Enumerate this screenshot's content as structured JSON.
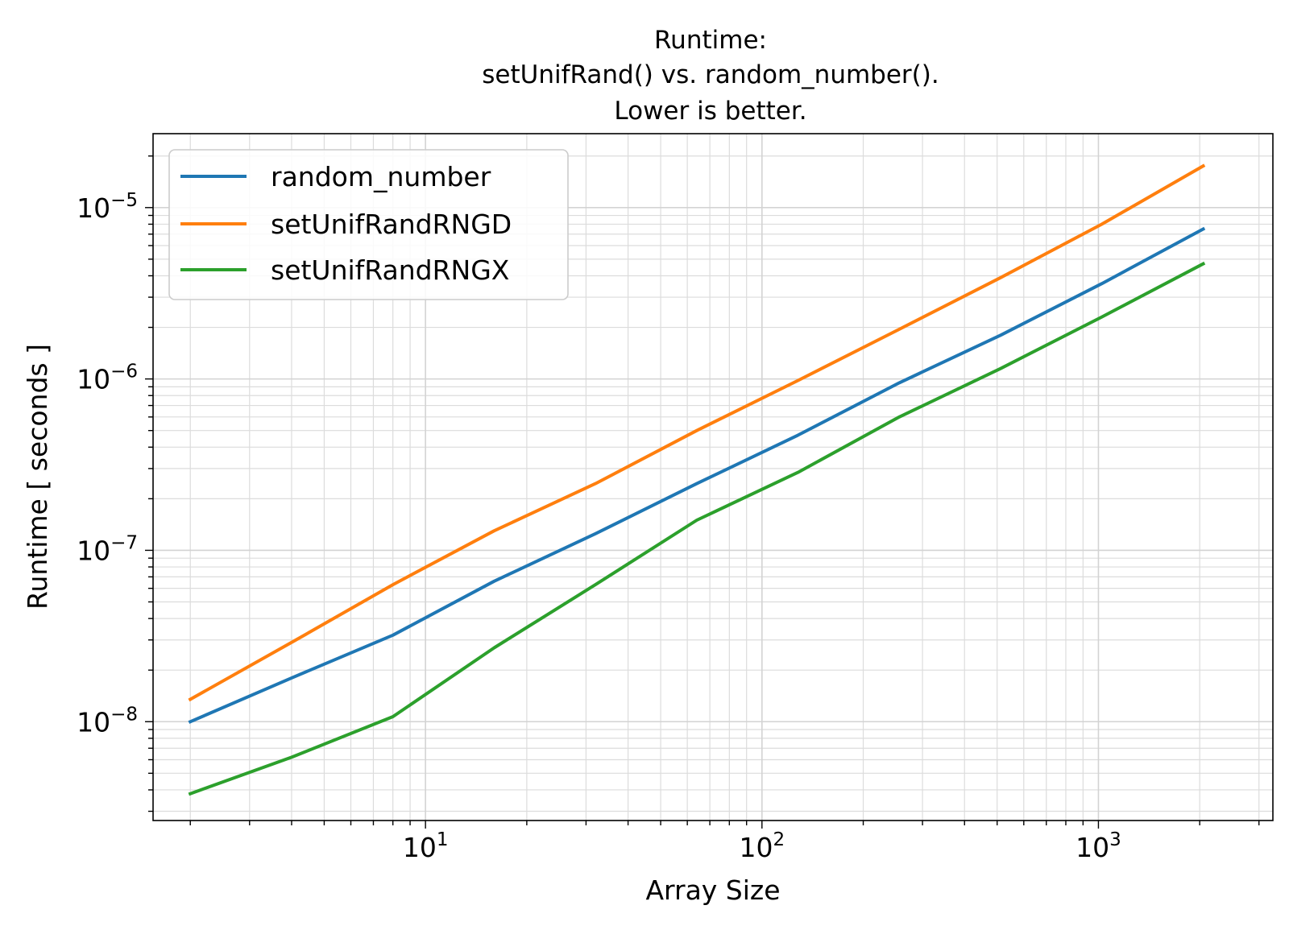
{
  "chart_data": {
    "type": "line",
    "title_lines": [
      "Runtime:",
      "setUnifRand() vs. random_number().",
      "Lower is better."
    ],
    "xlabel": "Array Size",
    "ylabel": "Runtime [ seconds ]",
    "xscale": "log",
    "yscale": "log",
    "xlim": [
      1.55,
      3300
    ],
    "ylim": [
      2.65e-09,
      2.7e-05
    ],
    "x_ticks": [
      {
        "value": 10,
        "base": "10",
        "exp": "1"
      },
      {
        "value": 100,
        "base": "10",
        "exp": "2"
      },
      {
        "value": 1000,
        "base": "10",
        "exp": "3"
      }
    ],
    "y_ticks": [
      {
        "value": 1e-08,
        "base": "10",
        "exp": "−8"
      },
      {
        "value": 1e-07,
        "base": "10",
        "exp": "−7"
      },
      {
        "value": 1e-06,
        "base": "10",
        "exp": "−6"
      },
      {
        "value": 1e-05,
        "base": "10",
        "exp": "−5"
      }
    ],
    "grid": "major and minor",
    "legend_position": "top-left",
    "x": [
      2,
      4,
      8,
      16,
      32,
      64,
      128,
      256,
      512,
      1024,
      2048
    ],
    "series": [
      {
        "name": "random_number",
        "color": "#1f77b4",
        "values": [
          1e-08,
          1.8e-08,
          3.2e-08,
          6.6e-08,
          1.25e-07,
          2.45e-07,
          4.7e-07,
          9.5e-07,
          1.8e-06,
          3.6e-06,
          7.5e-06
        ]
      },
      {
        "name": "setUnifRandRNGD",
        "color": "#ff7f0e",
        "values": [
          1.35e-08,
          2.9e-08,
          6.3e-08,
          1.3e-07,
          2.45e-07,
          5e-07,
          9.8e-07,
          1.95e-06,
          3.9e-06,
          8e-06,
          1.75e-05
        ]
      },
      {
        "name": "setUnifRandRNGX",
        "color": "#2ca02c",
        "values": [
          3.8e-09,
          6.2e-09,
          1.07e-08,
          2.7e-08,
          6.3e-08,
          1.5e-07,
          2.85e-07,
          6e-07,
          1.15e-06,
          2.3e-06,
          4.7e-06
        ]
      }
    ]
  }
}
